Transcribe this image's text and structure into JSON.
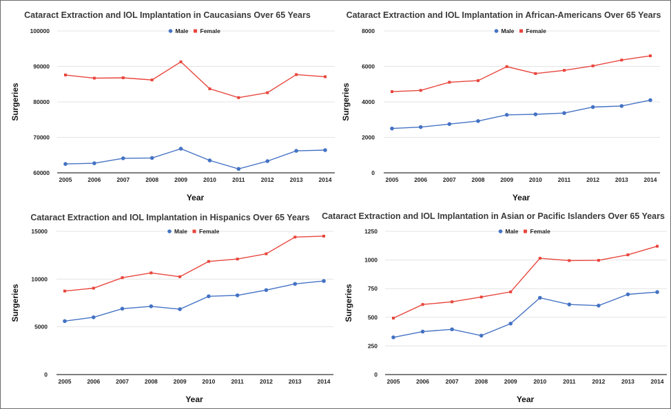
{
  "chart_data": [
    {
      "type": "line",
      "title": "Cataract Extraction and IOL Implantation in Caucasians Over 65 Years",
      "xlabel": "Year",
      "ylabel": "Surgeries",
      "categories": [
        "2005",
        "2006",
        "2007",
        "2008",
        "2009",
        "2010",
        "2011",
        "2012",
        "2013",
        "2014"
      ],
      "ylim": [
        60000,
        100000
      ],
      "yticks": [
        60000,
        70000,
        80000,
        90000,
        100000
      ],
      "grid": true,
      "legend": "top-center",
      "series": [
        {
          "name": "Male",
          "color": "#4472c4",
          "values": [
            62500,
            62700,
            64100,
            64200,
            66800,
            63500,
            61100,
            63300,
            66200,
            66400
          ]
        },
        {
          "name": "Female",
          "color": "#e8453c",
          "values": [
            87600,
            86700,
            86800,
            86200,
            91300,
            83700,
            81200,
            82600,
            87700,
            87100
          ]
        }
      ]
    },
    {
      "type": "line",
      "title": "Cataract Extraction and IOL Implantation in African-Americans Over 65 Years",
      "xlabel": "Year",
      "ylabel": "Surgeries",
      "categories": [
        "2005",
        "2006",
        "2007",
        "2008",
        "2009",
        "2010",
        "2011",
        "2012",
        "2013",
        "2014"
      ],
      "ylim": [
        0,
        8000
      ],
      "yticks": [
        0,
        2000,
        4000,
        6000,
        8000
      ],
      "grid": true,
      "legend": "top-center",
      "series": [
        {
          "name": "Male",
          "color": "#4472c4",
          "values": [
            2500,
            2580,
            2750,
            2920,
            3270,
            3300,
            3370,
            3710,
            3770,
            4100
          ]
        },
        {
          "name": "Female",
          "color": "#e8453c",
          "values": [
            4580,
            4650,
            5110,
            5200,
            5990,
            5600,
            5780,
            6030,
            6360,
            6600
          ]
        }
      ]
    },
    {
      "type": "line",
      "title": "Cataract Extraction and IOL Implantation in Hispanics Over 65 Years",
      "xlabel": "Year",
      "ylabel": "Surgeries",
      "categories": [
        "2005",
        "2006",
        "2007",
        "2008",
        "2009",
        "2010",
        "2011",
        "2012",
        "2013",
        "2014"
      ],
      "ylim": [
        0,
        15000
      ],
      "yticks": [
        0,
        5000,
        10000,
        15000
      ],
      "grid": true,
      "legend": "top-center",
      "series": [
        {
          "name": "Male",
          "color": "#4472c4",
          "values": [
            5600,
            6000,
            6900,
            7150,
            6850,
            8200,
            8300,
            8850,
            9500,
            9800
          ]
        },
        {
          "name": "Female",
          "color": "#e8453c",
          "values": [
            8750,
            9050,
            10150,
            10650,
            10250,
            11850,
            12100,
            12650,
            14400,
            14500
          ]
        }
      ]
    },
    {
      "type": "line",
      "title": "Cataract Extraction and IOL Implantation in Asian or Pacific Islanders Over 65 Years",
      "xlabel": "Year",
      "ylabel": "Surgeries",
      "categories": [
        "2005",
        "2006",
        "2007",
        "2008",
        "2009",
        "2010",
        "2011",
        "2012",
        "2013",
        "2014"
      ],
      "ylim": [
        0,
        1250
      ],
      "yticks": [
        0,
        250,
        500,
        750,
        1000,
        1250
      ],
      "grid": true,
      "legend": "top-center",
      "series": [
        {
          "name": "Male",
          "color": "#4472c4",
          "values": [
            325,
            375,
            395,
            340,
            445,
            670,
            612,
            602,
            700,
            720
          ]
        },
        {
          "name": "Female",
          "color": "#e8453c",
          "values": [
            493,
            612,
            635,
            677,
            722,
            1015,
            995,
            997,
            1045,
            1120
          ]
        }
      ]
    }
  ]
}
